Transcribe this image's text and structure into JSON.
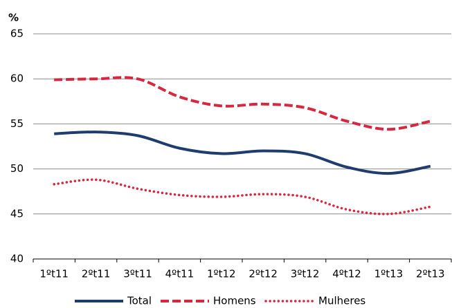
{
  "chart_data": {
    "type": "line",
    "y_label": "%",
    "categories": [
      "1ºt11",
      "2ºt11",
      "3ºt11",
      "4ºt11",
      "1ºt12",
      "2ºt12",
      "3ºt12",
      "4ºt12",
      "1ºt13",
      "2ºt13"
    ],
    "series": [
      {
        "name": "Total",
        "color": "#1f3c6e",
        "style": "solid",
        "values": [
          53.9,
          54.1,
          53.7,
          52.3,
          51.7,
          52.0,
          51.7,
          50.2,
          49.5,
          50.3
        ]
      },
      {
        "name": "Homens",
        "color": "#d7263d",
        "style": "dashed",
        "values": [
          59.9,
          60.0,
          60.0,
          58.0,
          57.0,
          57.2,
          56.8,
          55.3,
          54.4,
          55.3
        ]
      },
      {
        "name": "Mulheres",
        "color": "#d7263d",
        "style": "dotted",
        "values": [
          48.3,
          48.8,
          47.8,
          47.1,
          46.9,
          47.2,
          46.9,
          45.5,
          45.0,
          45.8
        ]
      }
    ],
    "ylim": [
      40,
      65
    ],
    "yticks": [
      40,
      45,
      50,
      55,
      60,
      65
    ],
    "grid": true,
    "legend": "bottom"
  }
}
